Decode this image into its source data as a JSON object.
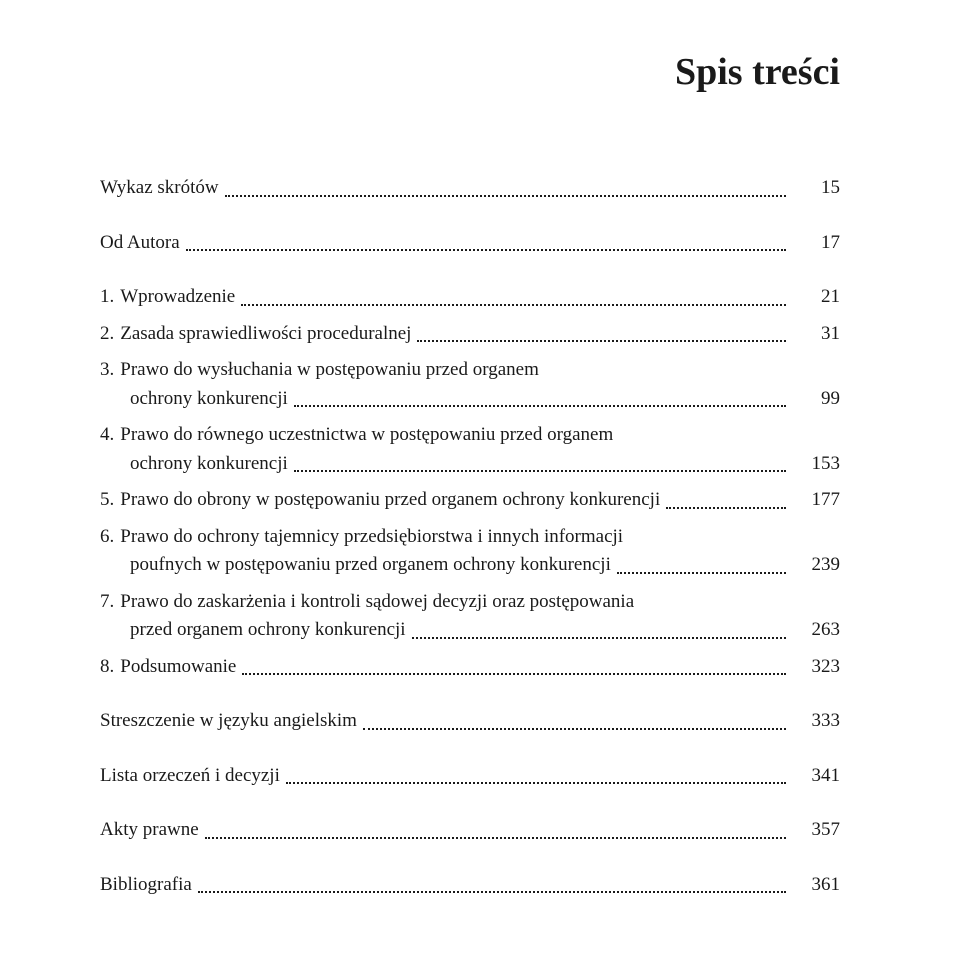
{
  "title": "Spis treści",
  "entries": [
    {
      "num": "",
      "label": "Wykaz skrótów",
      "page": "15",
      "groupGapBefore": false
    },
    {
      "num": "",
      "label": "Od Autora",
      "page": "17",
      "groupGapBefore": true
    },
    {
      "num": "1.",
      "label": "Wprowadzenie",
      "page": "21",
      "groupGapBefore": true
    },
    {
      "num": "2.",
      "label": "Zasada sprawiedliwości proceduralnej",
      "page": "31",
      "groupGapBefore": false
    },
    {
      "num": "3.",
      "label1": "Prawo do wysłuchania w postępowaniu przed organem",
      "label2": "ochrony konkurencji",
      "page": "99",
      "groupGapBefore": false,
      "multi": true
    },
    {
      "num": "4.",
      "label1": "Prawo do równego uczestnictwa w postępowaniu przed organem",
      "label2": "ochrony konkurencji",
      "page": "153",
      "groupGapBefore": false,
      "multi": true
    },
    {
      "num": "5.",
      "label": "Prawo do obrony w postępowaniu przed organem ochrony konkurencji",
      "page": "177",
      "groupGapBefore": false
    },
    {
      "num": "6.",
      "label1": "Prawo do ochrony tajemnicy przedsiębiorstwa i innych informacji",
      "label2": "poufnych w postępowaniu przed organem ochrony konkurencji",
      "page": "239",
      "groupGapBefore": false,
      "multi": true
    },
    {
      "num": "7.",
      "label1": "Prawo do zaskarżenia i kontroli sądowej decyzji oraz postępowania",
      "label2": "przed organem ochrony konkurencji",
      "page": "263",
      "groupGapBefore": false,
      "multi": true
    },
    {
      "num": "8.",
      "label": "Podsumowanie",
      "page": "323",
      "groupGapBefore": false
    },
    {
      "num": "",
      "label": "Streszczenie w języku angielskim",
      "page": "333",
      "groupGapBefore": true
    },
    {
      "num": "",
      "label": "Lista orzeczeń i decyzji",
      "page": "341",
      "groupGapBefore": true
    },
    {
      "num": "",
      "label": "Akty prawne",
      "page": "357",
      "groupGapBefore": true
    },
    {
      "num": "",
      "label": "Bibliografia",
      "page": "361",
      "groupGapBefore": true
    }
  ]
}
